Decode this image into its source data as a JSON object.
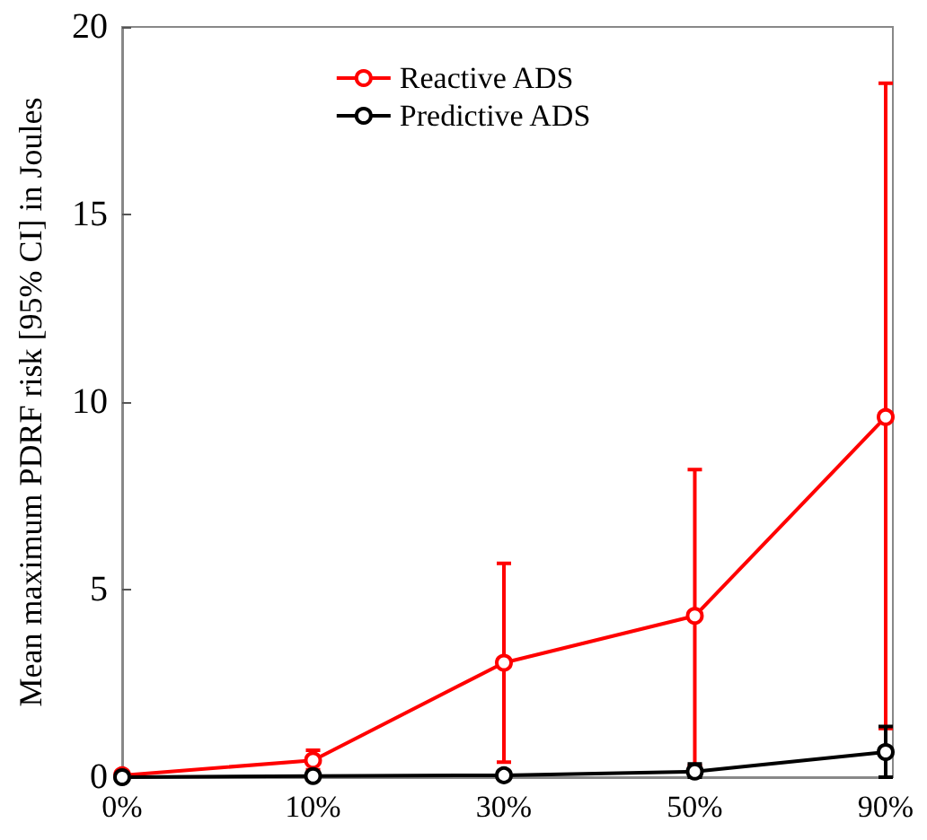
{
  "chart_data": {
    "type": "line",
    "ylabel": "Mean maximum PDRF risk [95% CI] in Joules",
    "categories": [
      "0%",
      "10%",
      "30%",
      "50%",
      "90%"
    ],
    "series": [
      {
        "name": "Reactive ADS",
        "color": "#ff0000",
        "values": [
          0.05,
          0.45,
          3.05,
          4.3,
          9.6
        ],
        "errors": [
          null,
          [
            0.2,
            0.72
          ],
          [
            0.4,
            5.7
          ],
          [
            0.3,
            8.2
          ],
          [
            1.3,
            18.5
          ]
        ]
      },
      {
        "name": "Predictive ADS",
        "color": "#000000",
        "values": [
          0,
          0.03,
          0.05,
          0.15,
          0.67
        ],
        "errors": [
          null,
          null,
          null,
          [
            0,
            0.35
          ],
          [
            0,
            1.35
          ]
        ]
      }
    ],
    "ylim": [
      0,
      20
    ],
    "yticks": [
      0,
      5,
      10,
      15,
      20
    ],
    "grid": false,
    "legend": "top",
    "marker": "circle",
    "line_style": "solid"
  }
}
